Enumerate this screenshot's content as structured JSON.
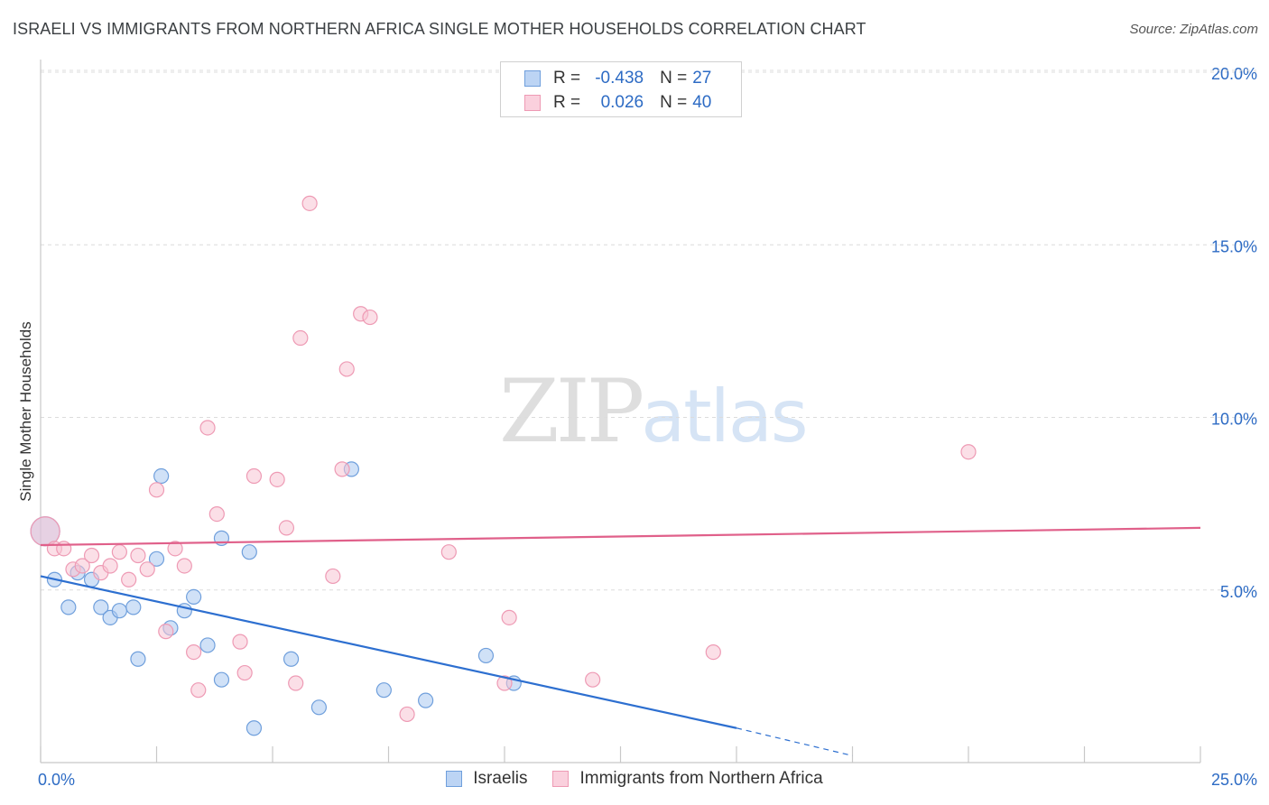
{
  "title": "ISRAELI VS IMMIGRANTS FROM NORTHERN AFRICA SINGLE MOTHER HOUSEHOLDS CORRELATION CHART",
  "source": "Source: ZipAtlas.com",
  "watermark": {
    "zip": "ZIP",
    "atlas": "atlas"
  },
  "legend": {
    "r_label": "R =",
    "n_label": "N =",
    "rows": [
      {
        "r": "-0.438",
        "n": "27"
      },
      {
        "r": "0.026",
        "n": "40"
      }
    ]
  },
  "chart_data": {
    "type": "scatter",
    "title": "ISRAELI VS IMMIGRANTS FROM NORTHERN AFRICA SINGLE MOTHER HOUSEHOLDS CORRELATION CHART",
    "xlabel": "",
    "ylabel": "Single Mother Households",
    "xlim": [
      0,
      25
    ],
    "ylim": [
      0,
      20
    ],
    "x_ticks_labeled": [
      "0.0%",
      "25.0%"
    ],
    "y_ticks": [
      5,
      10,
      15,
      20
    ],
    "y_tick_labels": [
      "5.0%",
      "10.0%",
      "15.0%",
      "20.0%"
    ],
    "grid": true,
    "legend_position": "top-center",
    "colors": {
      "israelis_fill": "#a9c8f0",
      "israelis_stroke": "#6f9fdc",
      "israelis_line": "#2d6fd0",
      "nafrica_fill": "#f8c4d4",
      "nafrica_stroke": "#ee9ab4",
      "nafrica_line": "#e0608a",
      "tick_label": "#2d6bc4"
    },
    "series": [
      {
        "name": "Israelis",
        "key": "israelis",
        "trend": {
          "x0": 0,
          "y0": 5.4,
          "x1": 15,
          "y1": 1.0,
          "dash_to_x": 17.5,
          "dash_to_y": 0.2
        },
        "points": [
          [
            0.1,
            6.7
          ],
          [
            0.3,
            5.3
          ],
          [
            0.6,
            4.5
          ],
          [
            0.8,
            5.5
          ],
          [
            1.1,
            5.3
          ],
          [
            1.3,
            4.5
          ],
          [
            1.5,
            4.2
          ],
          [
            1.7,
            4.4
          ],
          [
            2.0,
            4.5
          ],
          [
            2.1,
            3.0
          ],
          [
            2.5,
            5.9
          ],
          [
            2.6,
            8.3
          ],
          [
            2.8,
            3.9
          ],
          [
            3.1,
            4.4
          ],
          [
            3.3,
            4.8
          ],
          [
            3.6,
            3.4
          ],
          [
            3.9,
            2.4
          ],
          [
            3.9,
            6.5
          ],
          [
            4.5,
            6.1
          ],
          [
            4.6,
            1.0
          ],
          [
            5.4,
            3.0
          ],
          [
            6.0,
            1.6
          ],
          [
            6.7,
            8.5
          ],
          [
            7.4,
            2.1
          ],
          [
            8.3,
            1.8
          ],
          [
            9.6,
            3.1
          ],
          [
            10.2,
            2.3
          ]
        ]
      },
      {
        "name": "Immigrants from Northern Africa",
        "key": "nafrica",
        "trend": {
          "x0": 0,
          "y0": 6.3,
          "x1": 25,
          "y1": 6.8
        },
        "points": [
          [
            0.1,
            6.7
          ],
          [
            0.3,
            6.2
          ],
          [
            0.5,
            6.2
          ],
          [
            0.7,
            5.6
          ],
          [
            0.9,
            5.7
          ],
          [
            1.1,
            6.0
          ],
          [
            1.3,
            5.5
          ],
          [
            1.5,
            5.7
          ],
          [
            1.7,
            6.1
          ],
          [
            1.9,
            5.3
          ],
          [
            2.1,
            6.0
          ],
          [
            2.3,
            5.6
          ],
          [
            2.5,
            7.9
          ],
          [
            2.7,
            3.8
          ],
          [
            2.9,
            6.2
          ],
          [
            3.1,
            5.7
          ],
          [
            3.3,
            3.2
          ],
          [
            3.4,
            2.1
          ],
          [
            3.6,
            9.7
          ],
          [
            3.8,
            7.2
          ],
          [
            4.3,
            3.5
          ],
          [
            4.4,
            2.6
          ],
          [
            4.6,
            8.3
          ],
          [
            5.1,
            8.2
          ],
          [
            5.3,
            6.8
          ],
          [
            5.5,
            2.3
          ],
          [
            5.6,
            12.3
          ],
          [
            5.8,
            16.2
          ],
          [
            6.3,
            5.4
          ],
          [
            6.5,
            8.5
          ],
          [
            6.6,
            11.4
          ],
          [
            6.9,
            13.0
          ],
          [
            7.1,
            12.9
          ],
          [
            7.9,
            1.4
          ],
          [
            8.8,
            6.1
          ],
          [
            10.0,
            2.3
          ],
          [
            10.1,
            4.2
          ],
          [
            11.9,
            2.4
          ],
          [
            14.5,
            3.2
          ],
          [
            20.0,
            9.0
          ]
        ]
      }
    ]
  },
  "bottom_legend": [
    "Israelis",
    "Immigrants from Northern Africa"
  ]
}
